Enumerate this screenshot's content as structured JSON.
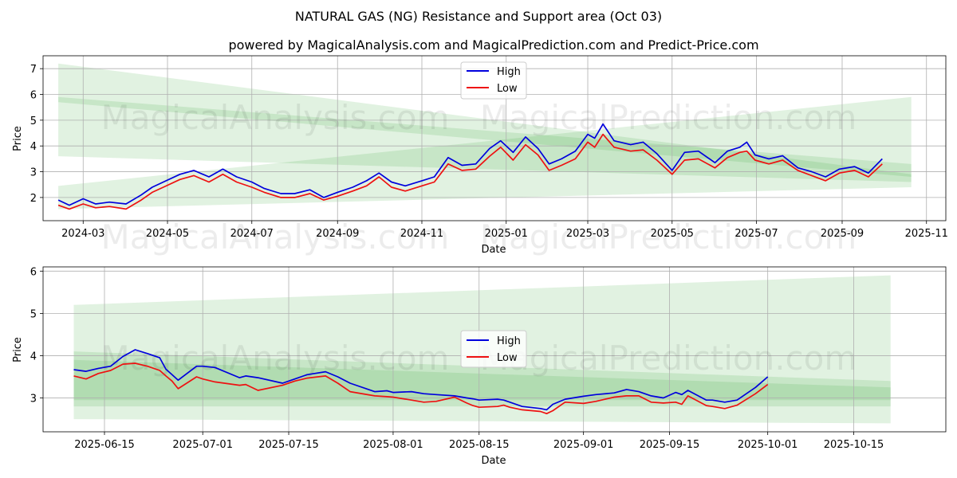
{
  "title": "NATURAL GAS (NG) Resistance and Support area (Oct 03)",
  "subtitle": "powered by MagicalAnalysis.com and MagicalPrediction.com and Predict-Price.com",
  "watermarks": [
    "MagicalAnalysis.com",
    "MagicalPrediction.com"
  ],
  "colors": {
    "high": "#0000dd",
    "low": "#ee1111",
    "band": "#2ca02c"
  },
  "chart_data": [
    {
      "type": "line",
      "xlabel": "Date",
      "ylabel": "Price",
      "xlim": [
        "2024-02-01",
        "2025-11-15"
      ],
      "ylim": [
        1.1,
        7.5
      ],
      "yticks": [
        2,
        3,
        4,
        5,
        6,
        7
      ],
      "xticks": [
        {
          "date": "2024-03-01",
          "label": "2024-03"
        },
        {
          "date": "2024-05-01",
          "label": "2024-05"
        },
        {
          "date": "2024-07-01",
          "label": "2024-07"
        },
        {
          "date": "2024-09-01",
          "label": "2024-09"
        },
        {
          "date": "2024-11-01",
          "label": "2024-11"
        },
        {
          "date": "2025-01-01",
          "label": "2025-01"
        },
        {
          "date": "2025-03-01",
          "label": "2025-03"
        },
        {
          "date": "2025-05-01",
          "label": "2025-05"
        },
        {
          "date": "2025-07-01",
          "label": "2025-07"
        },
        {
          "date": "2025-09-01",
          "label": "2025-09"
        },
        {
          "date": "2025-11-01",
          "label": "2025-11"
        }
      ],
      "grid": true,
      "legend": "top-center",
      "bands": [
        {
          "x": [
            "2024-02-12",
            "2025-10-21"
          ],
          "upper": [
            7.2,
            2.9
          ],
          "lower": [
            3.6,
            2.6
          ]
        },
        {
          "x": [
            "2024-02-12",
            "2025-10-21"
          ],
          "upper": [
            5.9,
            3.3
          ],
          "lower": [
            5.7,
            2.8
          ]
        },
        {
          "x": [
            "2024-02-12",
            "2025-10-21"
          ],
          "upper": [
            2.45,
            5.9
          ],
          "lower": [
            1.55,
            2.4
          ]
        }
      ],
      "series": [
        {
          "name": "High",
          "x": [
            "2024-02-12",
            "2024-02-20",
            "2024-03-01",
            "2024-03-10",
            "2024-03-20",
            "2024-04-01",
            "2024-04-12",
            "2024-04-20",
            "2024-04-28",
            "2024-05-10",
            "2024-05-20",
            "2024-05-31",
            "2024-06-10",
            "2024-06-20",
            "2024-07-01",
            "2024-07-10",
            "2024-07-22",
            "2024-08-01",
            "2024-08-12",
            "2024-08-22",
            "2024-09-01",
            "2024-09-12",
            "2024-09-22",
            "2024-10-01",
            "2024-10-10",
            "2024-10-20",
            "2024-11-01",
            "2024-11-10",
            "2024-11-20",
            "2024-11-30",
            "2024-12-10",
            "2024-12-20",
            "2024-12-28",
            "2025-01-06",
            "2025-01-15",
            "2025-01-24",
            "2025-02-01",
            "2025-02-10",
            "2025-02-20",
            "2025-03-01",
            "2025-03-06",
            "2025-03-12",
            "2025-03-20",
            "2025-04-01",
            "2025-04-10",
            "2025-04-20",
            "2025-05-01",
            "2025-05-10",
            "2025-05-20",
            "2025-06-01",
            "2025-06-10",
            "2025-06-19",
            "2025-06-24",
            "2025-06-30",
            "2025-07-10",
            "2025-07-20",
            "2025-07-31",
            "2025-08-10",
            "2025-08-20",
            "2025-08-30",
            "2025-09-10",
            "2025-09-20",
            "2025-09-30"
          ],
          "values": [
            1.9,
            1.7,
            1.95,
            1.75,
            1.82,
            1.75,
            2.1,
            2.4,
            2.6,
            2.9,
            3.05,
            2.8,
            3.1,
            2.8,
            2.6,
            2.35,
            2.15,
            2.15,
            2.3,
            2.0,
            2.2,
            2.4,
            2.65,
            2.95,
            2.6,
            2.45,
            2.65,
            2.8,
            3.55,
            3.25,
            3.3,
            3.9,
            4.2,
            3.75,
            4.35,
            3.9,
            3.3,
            3.5,
            3.8,
            4.45,
            4.3,
            4.85,
            4.2,
            4.05,
            4.15,
            3.7,
            3.05,
            3.75,
            3.8,
            3.35,
            3.8,
            3.95,
            4.15,
            3.65,
            3.5,
            3.62,
            3.15,
            3.0,
            2.8,
            3.1,
            3.2,
            2.95,
            3.5
          ]
        },
        {
          "name": "Low",
          "x": [
            "2024-02-12",
            "2024-02-20",
            "2024-03-01",
            "2024-03-10",
            "2024-03-20",
            "2024-04-01",
            "2024-04-12",
            "2024-04-20",
            "2024-04-28",
            "2024-05-10",
            "2024-05-20",
            "2024-05-31",
            "2024-06-10",
            "2024-06-20",
            "2024-07-01",
            "2024-07-10",
            "2024-07-22",
            "2024-08-01",
            "2024-08-12",
            "2024-08-22",
            "2024-09-01",
            "2024-09-12",
            "2024-09-22",
            "2024-10-01",
            "2024-10-10",
            "2024-10-20",
            "2024-11-01",
            "2024-11-10",
            "2024-11-20",
            "2024-11-30",
            "2024-12-10",
            "2024-12-20",
            "2024-12-28",
            "2025-01-06",
            "2025-01-15",
            "2025-01-24",
            "2025-02-01",
            "2025-02-10",
            "2025-02-20",
            "2025-03-01",
            "2025-03-06",
            "2025-03-12",
            "2025-03-20",
            "2025-04-01",
            "2025-04-10",
            "2025-04-20",
            "2025-05-01",
            "2025-05-10",
            "2025-05-20",
            "2025-06-01",
            "2025-06-10",
            "2025-06-19",
            "2025-06-24",
            "2025-06-30",
            "2025-07-10",
            "2025-07-20",
            "2025-07-31",
            "2025-08-10",
            "2025-08-20",
            "2025-08-30",
            "2025-09-10",
            "2025-09-20",
            "2025-09-30"
          ],
          "values": [
            1.7,
            1.55,
            1.75,
            1.6,
            1.65,
            1.55,
            1.9,
            2.2,
            2.4,
            2.7,
            2.85,
            2.6,
            2.9,
            2.6,
            2.4,
            2.2,
            2.0,
            2.0,
            2.15,
            1.9,
            2.05,
            2.25,
            2.45,
            2.8,
            2.4,
            2.25,
            2.45,
            2.6,
            3.3,
            3.05,
            3.1,
            3.6,
            3.95,
            3.45,
            4.05,
            3.65,
            3.05,
            3.25,
            3.5,
            4.15,
            3.95,
            4.45,
            3.95,
            3.8,
            3.85,
            3.45,
            2.9,
            3.45,
            3.5,
            3.15,
            3.55,
            3.75,
            3.8,
            3.45,
            3.3,
            3.45,
            3.05,
            2.85,
            2.65,
            2.95,
            3.05,
            2.8,
            3.3
          ]
        }
      ]
    },
    {
      "type": "line",
      "xlabel": "Date",
      "ylabel": "Price",
      "xlim": [
        "2025-06-05",
        "2025-10-30"
      ],
      "ylim": [
        2.2,
        6.1
      ],
      "yticks": [
        3,
        4,
        5,
        6
      ],
      "xticks": [
        {
          "date": "2025-06-15",
          "label": "2025-06-15"
        },
        {
          "date": "2025-07-01",
          "label": "2025-07-01"
        },
        {
          "date": "2025-07-15",
          "label": "2025-07-15"
        },
        {
          "date": "2025-08-01",
          "label": "2025-08-01"
        },
        {
          "date": "2025-08-15",
          "label": "2025-08-15"
        },
        {
          "date": "2025-09-01",
          "label": "2025-09-01"
        },
        {
          "date": "2025-09-15",
          "label": "2025-09-15"
        },
        {
          "date": "2025-10-01",
          "label": "2025-10-01"
        },
        {
          "date": "2025-10-15",
          "label": "2025-10-15"
        }
      ],
      "grid": true,
      "legend": "center",
      "bands": [
        {
          "x": [
            "2025-06-10",
            "2025-10-21"
          ],
          "upper": [
            5.2,
            5.9
          ],
          "lower": [
            2.5,
            2.4
          ]
        },
        {
          "x": [
            "2025-06-10",
            "2025-10-21"
          ],
          "upper": [
            4.1,
            3.4
          ],
          "lower": [
            2.8,
            2.8
          ]
        },
        {
          "x": [
            "2025-06-10",
            "2025-10-21"
          ],
          "upper": [
            3.9,
            3.25
          ],
          "lower": [
            2.95,
            2.95
          ]
        }
      ],
      "series": [
        {
          "name": "High",
          "x": [
            "2025-06-10",
            "2025-06-12",
            "2025-06-14",
            "2025-06-16",
            "2025-06-18",
            "2025-06-20",
            "2025-06-22",
            "2025-06-24",
            "2025-06-25",
            "2025-06-26",
            "2025-06-27",
            "2025-06-30",
            "2025-07-01",
            "2025-07-03",
            "2025-07-07",
            "2025-07-08",
            "2025-07-10",
            "2025-07-14",
            "2025-07-16",
            "2025-07-18",
            "2025-07-21",
            "2025-07-23",
            "2025-07-25",
            "2025-07-29",
            "2025-07-31",
            "2025-08-01",
            "2025-08-04",
            "2025-08-06",
            "2025-08-08",
            "2025-08-11",
            "2025-08-13",
            "2025-08-14",
            "2025-08-15",
            "2025-08-18",
            "2025-08-19",
            "2025-08-20",
            "2025-08-22",
            "2025-08-25",
            "2025-08-26",
            "2025-08-27",
            "2025-08-29",
            "2025-09-01",
            "2025-09-03",
            "2025-09-06",
            "2025-09-08",
            "2025-09-10",
            "2025-09-12",
            "2025-09-14",
            "2025-09-16",
            "2025-09-17",
            "2025-09-18",
            "2025-09-21",
            "2025-09-22",
            "2025-09-24",
            "2025-09-26",
            "2025-09-29",
            "2025-10-01"
          ],
          "values": [
            3.67,
            3.63,
            3.7,
            3.75,
            3.98,
            4.14,
            4.05,
            3.95,
            3.68,
            3.55,
            3.42,
            3.75,
            3.75,
            3.72,
            3.48,
            3.52,
            3.48,
            3.35,
            3.45,
            3.55,
            3.62,
            3.5,
            3.35,
            3.15,
            3.17,
            3.13,
            3.15,
            3.1,
            3.08,
            3.05,
            3.0,
            2.98,
            2.95,
            2.97,
            2.95,
            2.9,
            2.8,
            2.75,
            2.72,
            2.85,
            2.97,
            3.04,
            3.08,
            3.12,
            3.2,
            3.15,
            3.05,
            3.0,
            3.13,
            3.08,
            3.18,
            2.95,
            2.95,
            2.9,
            2.95,
            3.25,
            3.5
          ]
        },
        {
          "name": "Low",
          "x": [
            "2025-06-10",
            "2025-06-12",
            "2025-06-14",
            "2025-06-16",
            "2025-06-18",
            "2025-06-20",
            "2025-06-22",
            "2025-06-24",
            "2025-06-25",
            "2025-06-26",
            "2025-06-27",
            "2025-06-30",
            "2025-07-01",
            "2025-07-03",
            "2025-07-07",
            "2025-07-08",
            "2025-07-10",
            "2025-07-14",
            "2025-07-16",
            "2025-07-18",
            "2025-07-21",
            "2025-07-23",
            "2025-07-25",
            "2025-07-29",
            "2025-07-31",
            "2025-08-01",
            "2025-08-04",
            "2025-08-06",
            "2025-08-08",
            "2025-08-11",
            "2025-08-13",
            "2025-08-14",
            "2025-08-15",
            "2025-08-18",
            "2025-08-19",
            "2025-08-20",
            "2025-08-22",
            "2025-08-25",
            "2025-08-26",
            "2025-08-27",
            "2025-08-29",
            "2025-09-01",
            "2025-09-03",
            "2025-09-06",
            "2025-09-08",
            "2025-09-10",
            "2025-09-12",
            "2025-09-14",
            "2025-09-16",
            "2025-09-17",
            "2025-09-18",
            "2025-09-21",
            "2025-09-22",
            "2025-09-24",
            "2025-09-26",
            "2025-09-29",
            "2025-10-01"
          ],
          "values": [
            3.52,
            3.45,
            3.58,
            3.65,
            3.8,
            3.82,
            3.75,
            3.65,
            3.52,
            3.4,
            3.22,
            3.5,
            3.45,
            3.38,
            3.3,
            3.32,
            3.18,
            3.3,
            3.4,
            3.47,
            3.52,
            3.35,
            3.15,
            3.05,
            3.03,
            3.02,
            2.95,
            2.9,
            2.92,
            3.02,
            2.88,
            2.82,
            2.78,
            2.8,
            2.83,
            2.78,
            2.72,
            2.68,
            2.63,
            2.7,
            2.9,
            2.87,
            2.92,
            3.02,
            3.05,
            3.05,
            2.9,
            2.88,
            2.9,
            2.85,
            3.05,
            2.82,
            2.8,
            2.75,
            2.83,
            3.1,
            3.32
          ]
        }
      ]
    }
  ]
}
